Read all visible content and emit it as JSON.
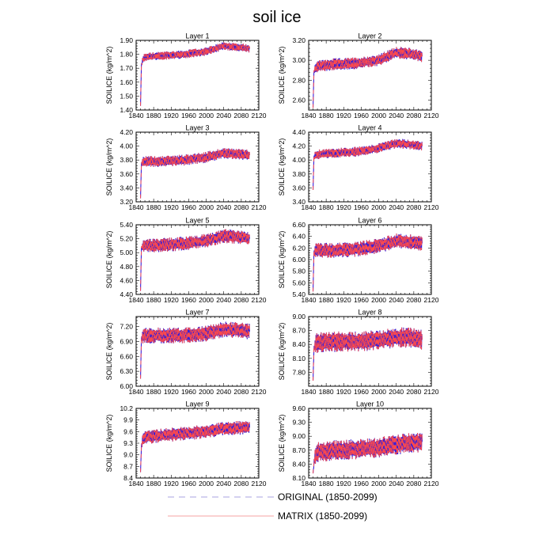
{
  "figure_title": "soil ice",
  "legend": {
    "original_label": "ORIGINAL (1850-2099)",
    "matrix_label": "MATRIX (1850-2099)"
  },
  "colors": {
    "original": "#3a1fd6",
    "matrix": "#ff4a4a",
    "legend_original": "#a9a3e0",
    "legend_matrix": "#f4a3a3",
    "frame": "#000000"
  },
  "chart_data": [
    {
      "type": "line",
      "title": "Layer 1",
      "ylabel": "SOILICE  (kg/m^2)",
      "xlim": [
        1840,
        2120
      ],
      "x_ticks": [
        1840,
        1880,
        1920,
        1960,
        2000,
        2040,
        2080,
        2120
      ],
      "x_tick_labels": [
        "1840",
        "1880",
        "1920",
        "1960",
        "2000",
        "2040",
        "2080",
        "2120"
      ],
      "ylim": [
        1.4,
        1.9
      ],
      "y_ticks": [
        1.4,
        1.5,
        1.6,
        1.7,
        1.8,
        1.9
      ],
      "y_tick_labels": [
        "1.40",
        "1.50",
        "1.60",
        "1.70",
        "1.80",
        "1.90"
      ],
      "start_value": 1.43,
      "series_anchors_x": [
        1850,
        1852,
        1855,
        1860,
        1900,
        1950,
        2000,
        2040,
        2080,
        2099
      ],
      "series_anchors_y": [
        1.43,
        1.72,
        1.76,
        1.78,
        1.79,
        1.8,
        1.82,
        1.86,
        1.85,
        1.84
      ],
      "amplitude": 0.03,
      "series": [
        {
          "name": "ORIGINAL (1850-2099)"
        },
        {
          "name": "MATRIX (1850-2099)"
        }
      ]
    },
    {
      "type": "line",
      "title": "Layer 2",
      "ylabel": "SOILICE  (kg/m^2)",
      "xlim": [
        1840,
        2120
      ],
      "x_ticks": [
        1840,
        1880,
        1920,
        1960,
        2000,
        2040,
        2080,
        2120
      ],
      "x_tick_labels": [
        "1840",
        "1880",
        "1920",
        "1960",
        "2000",
        "2040",
        "2080",
        "2120"
      ],
      "ylim": [
        2.5,
        3.2
      ],
      "y_ticks": [
        2.6,
        2.8,
        3.0,
        3.2
      ],
      "y_tick_labels": [
        "2.60",
        "2.80",
        "3.00",
        "3.20"
      ],
      "start_value": 2.52,
      "series_anchors_x": [
        1850,
        1852,
        1855,
        1860,
        1900,
        1950,
        2000,
        2040,
        2080,
        2099
      ],
      "series_anchors_y": [
        2.52,
        2.88,
        2.92,
        2.94,
        2.96,
        2.97,
        3.0,
        3.08,
        3.06,
        3.04
      ],
      "amplitude": 0.06,
      "series": [
        {
          "name": "ORIGINAL (1850-2099)"
        },
        {
          "name": "MATRIX (1850-2099)"
        }
      ]
    },
    {
      "type": "line",
      "title": "Layer 3",
      "ylabel": "SOILICE  (kg/m^2)",
      "xlim": [
        1840,
        2120
      ],
      "x_ticks": [
        1840,
        1880,
        1920,
        1960,
        2000,
        2040,
        2080,
        2120
      ],
      "x_tick_labels": [
        "1840",
        "1880",
        "1920",
        "1960",
        "2000",
        "2040",
        "2080",
        "2120"
      ],
      "ylim": [
        3.2,
        4.2
      ],
      "y_ticks": [
        3.2,
        3.4,
        3.6,
        3.8,
        4.0,
        4.2
      ],
      "y_tick_labels": [
        "3.20",
        "3.40",
        "3.60",
        "3.80",
        "4.00",
        "4.20"
      ],
      "start_value": 3.25,
      "series_anchors_x": [
        1850,
        1852,
        1855,
        1860,
        1900,
        1950,
        2000,
        2040,
        2080,
        2099
      ],
      "series_anchors_y": [
        3.25,
        3.74,
        3.77,
        3.78,
        3.78,
        3.8,
        3.84,
        3.9,
        3.88,
        3.87
      ],
      "amplitude": 0.08,
      "series": [
        {
          "name": "ORIGINAL (1850-2099)"
        },
        {
          "name": "MATRIX (1850-2099)"
        }
      ]
    },
    {
      "type": "line",
      "title": "Layer 4",
      "ylabel": "SOILICE  (kg/m^2)",
      "xlim": [
        1840,
        2120
      ],
      "x_ticks": [
        1840,
        1880,
        1920,
        1960,
        2000,
        2040,
        2080,
        2120
      ],
      "x_tick_labels": [
        "1840",
        "1880",
        "1920",
        "1960",
        "2000",
        "2040",
        "2080",
        "2120"
      ],
      "ylim": [
        3.4,
        4.4
      ],
      "y_ticks": [
        3.4,
        3.6,
        3.8,
        4.0,
        4.2,
        4.4
      ],
      "y_tick_labels": [
        "3.40",
        "3.60",
        "3.80",
        "4.00",
        "4.20",
        "4.40"
      ],
      "start_value": 3.57,
      "series_anchors_x": [
        1850,
        1852,
        1855,
        1860,
        1900,
        1950,
        2000,
        2040,
        2080,
        2099
      ],
      "series_anchors_y": [
        3.57,
        4.04,
        4.07,
        4.08,
        4.1,
        4.12,
        4.17,
        4.24,
        4.22,
        4.2
      ],
      "amplitude": 0.07,
      "series": [
        {
          "name": "ORIGINAL (1850-2099)"
        },
        {
          "name": "MATRIX (1850-2099)"
        }
      ]
    },
    {
      "type": "line",
      "title": "Layer 5",
      "ylabel": "SOILICE  (kg/m^2)",
      "xlim": [
        1840,
        2120
      ],
      "x_ticks": [
        1840,
        1880,
        1920,
        1960,
        2000,
        2040,
        2080,
        2120
      ],
      "x_tick_labels": [
        "1840",
        "1880",
        "1920",
        "1960",
        "2000",
        "2040",
        "2080",
        "2120"
      ],
      "ylim": [
        4.4,
        5.4
      ],
      "y_ticks": [
        4.4,
        4.6,
        4.8,
        5.0,
        5.2,
        5.4
      ],
      "y_tick_labels": [
        "4.40",
        "4.60",
        "4.80",
        "5.00",
        "5.20",
        "5.40"
      ],
      "start_value": 4.45,
      "series_anchors_x": [
        1850,
        1852,
        1855,
        1860,
        1900,
        1950,
        2000,
        2040,
        2080,
        2099
      ],
      "series_anchors_y": [
        4.45,
        5.06,
        5.09,
        5.1,
        5.11,
        5.13,
        5.17,
        5.24,
        5.22,
        5.2
      ],
      "amplitude": 0.1,
      "series": [
        {
          "name": "ORIGINAL (1850-2099)"
        },
        {
          "name": "MATRIX (1850-2099)"
        }
      ]
    },
    {
      "type": "line",
      "title": "Layer 6",
      "ylabel": "SOILICE  (kg/m^2)",
      "xlim": [
        1840,
        2120
      ],
      "x_ticks": [
        1840,
        1880,
        1920,
        1960,
        2000,
        2040,
        2080,
        2120
      ],
      "x_tick_labels": [
        "1840",
        "1880",
        "1920",
        "1960",
        "2000",
        "2040",
        "2080",
        "2120"
      ],
      "ylim": [
        5.4,
        6.6
      ],
      "y_ticks": [
        5.4,
        5.6,
        5.8,
        6.0,
        6.2,
        6.4,
        6.6
      ],
      "y_tick_labels": [
        "5.40",
        "5.60",
        "5.80",
        "6.00",
        "6.20",
        "6.40",
        "6.60"
      ],
      "start_value": 5.45,
      "series_anchors_x": [
        1850,
        1852,
        1855,
        1860,
        1900,
        1950,
        2000,
        2040,
        2080,
        2099
      ],
      "series_anchors_y": [
        5.45,
        6.12,
        6.15,
        6.16,
        6.16,
        6.18,
        6.24,
        6.32,
        6.3,
        6.28
      ],
      "amplitude": 0.13,
      "series": [
        {
          "name": "ORIGINAL (1850-2099)"
        },
        {
          "name": "MATRIX (1850-2099)"
        }
      ]
    },
    {
      "type": "line",
      "title": "Layer 7",
      "ylabel": "SOILICE  (kg/m^2)",
      "xlim": [
        1840,
        2120
      ],
      "x_ticks": [
        1840,
        1880,
        1920,
        1960,
        2000,
        2040,
        2080,
        2120
      ],
      "x_tick_labels": [
        "1840",
        "1880",
        "1920",
        "1960",
        "2000",
        "2040",
        "2080",
        "2120"
      ],
      "ylim": [
        6.0,
        7.4
      ],
      "y_ticks": [
        6.0,
        6.3,
        6.6,
        6.9,
        7.2
      ],
      "y_tick_labels": [
        "6.00",
        "6.30",
        "6.60",
        "6.90",
        "7.20"
      ],
      "start_value": 6.15,
      "series_anchors_x": [
        1850,
        1852,
        1855,
        1860,
        1900,
        1950,
        2000,
        2040,
        2080,
        2099
      ],
      "series_anchors_y": [
        6.15,
        6.95,
        7.0,
        7.02,
        7.02,
        7.02,
        7.06,
        7.14,
        7.12,
        7.1
      ],
      "amplitude": 0.16,
      "series": [
        {
          "name": "ORIGINAL (1850-2099)"
        },
        {
          "name": "MATRIX (1850-2099)"
        }
      ]
    },
    {
      "type": "line",
      "title": "Layer 8",
      "ylabel": "SOILICE  (kg/m^2)",
      "xlim": [
        1840,
        2120
      ],
      "x_ticks": [
        1840,
        1880,
        1920,
        1960,
        2000,
        2040,
        2080,
        2120
      ],
      "x_tick_labels": [
        "1840",
        "1880",
        "1920",
        "1960",
        "2000",
        "2040",
        "2080",
        "2120"
      ],
      "ylim": [
        7.5,
        9.0
      ],
      "y_ticks": [
        7.8,
        8.1,
        8.4,
        8.7,
        9.0
      ],
      "y_tick_labels": [
        "7.80",
        "8.10",
        "8.40",
        "8.70",
        "9.00"
      ],
      "start_value": 7.62,
      "series_anchors_x": [
        1850,
        1852,
        1855,
        1860,
        1900,
        1950,
        2000,
        2040,
        2080,
        2099
      ],
      "series_anchors_y": [
        7.62,
        8.3,
        8.4,
        8.44,
        8.46,
        8.46,
        8.5,
        8.55,
        8.54,
        8.5
      ],
      "amplitude": 0.22,
      "series": [
        {
          "name": "ORIGINAL (1850-2099)"
        },
        {
          "name": "MATRIX (1850-2099)"
        }
      ]
    },
    {
      "type": "line",
      "title": "Layer 9",
      "ylabel": "SOILICE  (kg/m^2)",
      "xlim": [
        1840,
        2120
      ],
      "x_ticks": [
        1840,
        1880,
        1920,
        1960,
        2000,
        2040,
        2080,
        2120
      ],
      "x_tick_labels": [
        "1840",
        "1880",
        "1920",
        "1960",
        "2000",
        "2040",
        "2080",
        "2120"
      ],
      "ylim": [
        8.4,
        10.2
      ],
      "y_ticks": [
        8.4,
        8.7,
        9.0,
        9.3,
        9.6,
        9.9,
        10.2
      ],
      "y_tick_labels": [
        "8.4",
        "8.7",
        "9.0",
        "9.3",
        "9.6",
        "9.9",
        "10.2"
      ],
      "start_value": 8.55,
      "series_anchors_x": [
        1850,
        1852,
        1855,
        1860,
        1900,
        1950,
        2000,
        2040,
        2080,
        2099
      ],
      "series_anchors_y": [
        8.55,
        9.2,
        9.4,
        9.45,
        9.5,
        9.55,
        9.6,
        9.68,
        9.7,
        9.7
      ],
      "amplitude": 0.18,
      "series": [
        {
          "name": "ORIGINAL (1850-2099)"
        },
        {
          "name": "MATRIX (1850-2099)"
        }
      ]
    },
    {
      "type": "line",
      "title": "Layer 10",
      "ylabel": "SOILICE  (kg/m^2)",
      "xlim": [
        1840,
        2120
      ],
      "x_ticks": [
        1840,
        1880,
        1920,
        1960,
        2000,
        2040,
        2080,
        2120
      ],
      "x_tick_labels": [
        "1840",
        "1880",
        "1920",
        "1960",
        "2000",
        "2040",
        "2080",
        "2120"
      ],
      "ylim": [
        8.1,
        9.6
      ],
      "y_ticks": [
        8.1,
        8.4,
        8.7,
        9.0,
        9.3,
        9.6
      ],
      "y_tick_labels": [
        "8.10",
        "8.40",
        "8.70",
        "9.00",
        "9.30",
        "9.60"
      ],
      "start_value": 8.2,
      "series_anchors_x": [
        1850,
        1852,
        1855,
        1860,
        1900,
        1950,
        2000,
        2040,
        2080,
        2099
      ],
      "series_anchors_y": [
        8.2,
        8.4,
        8.6,
        8.66,
        8.7,
        8.72,
        8.76,
        8.82,
        8.86,
        8.88
      ],
      "amplitude": 0.22,
      "series": [
        {
          "name": "ORIGINAL (1850-2099)"
        },
        {
          "name": "MATRIX (1850-2099)"
        }
      ]
    }
  ]
}
